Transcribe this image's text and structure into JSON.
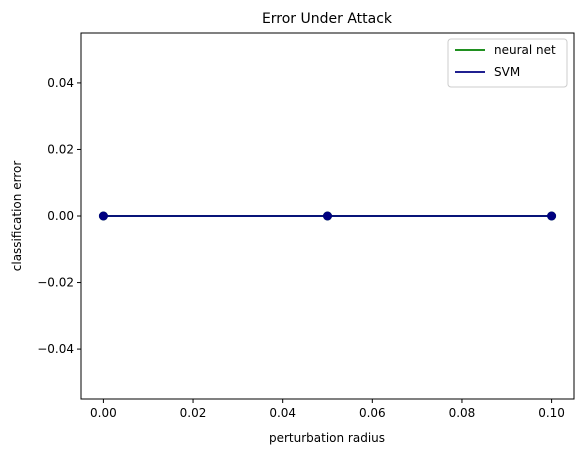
{
  "chart_data": {
    "type": "line",
    "title": "Error Under Attack",
    "xlabel": "perturbation radius",
    "ylabel": "classification error",
    "x": [
      0.0,
      0.05,
      0.1
    ],
    "xlim": [
      -0.005,
      0.105
    ],
    "ylim": [
      -0.055,
      0.055
    ],
    "xticks": [
      0.0,
      0.02,
      0.04,
      0.06,
      0.08,
      0.1
    ],
    "xtick_labels": [
      "0.00",
      "0.02",
      "0.04",
      "0.06",
      "0.08",
      "0.10"
    ],
    "yticks": [
      -0.04,
      -0.02,
      0.0,
      0.02,
      0.04
    ],
    "ytick_labels": [
      "−0.04",
      "−0.02",
      "0.00",
      "0.02",
      "0.04"
    ],
    "grid": false,
    "legend_position": "top-right",
    "series": [
      {
        "name": "neural net",
        "values": [
          0,
          0,
          0
        ],
        "color": "#008000",
        "marker": true
      },
      {
        "name": "SVM",
        "values": [
          0,
          0,
          0
        ],
        "color": "#000080",
        "marker": true
      }
    ]
  }
}
